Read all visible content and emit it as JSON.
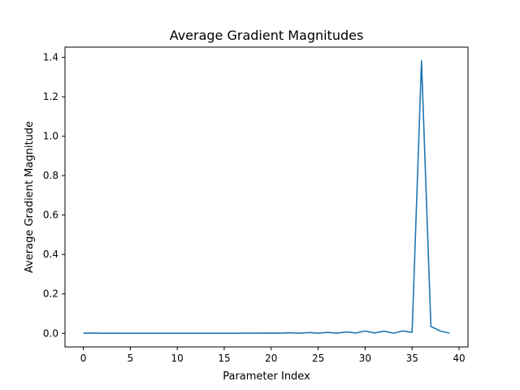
{
  "chart_data": {
    "type": "line",
    "title": "Average Gradient Magnitudes",
    "xlabel": "Parameter Index",
    "ylabel": "Average Gradient Magnitude",
    "xlim": [
      -1.95,
      40.95
    ],
    "ylim": [
      -0.069,
      1.452
    ],
    "grid": false,
    "xticks": [
      0,
      5,
      10,
      15,
      20,
      25,
      30,
      35,
      40
    ],
    "xtick_labels": [
      "0",
      "5",
      "10",
      "15",
      "20",
      "25",
      "30",
      "35",
      "40"
    ],
    "yticks": [
      0.0,
      0.2,
      0.4,
      0.6,
      0.8,
      1.0,
      1.2,
      1.4
    ],
    "ytick_labels": [
      "0.0",
      "0.2",
      "0.4",
      "0.6",
      "0.8",
      "1.0",
      "1.2",
      "1.4"
    ],
    "color": "#1f77b4",
    "x": [
      0,
      1,
      2,
      3,
      4,
      5,
      6,
      7,
      8,
      9,
      10,
      11,
      12,
      13,
      14,
      15,
      16,
      17,
      18,
      19,
      20,
      21,
      22,
      23,
      24,
      25,
      26,
      27,
      28,
      29,
      30,
      31,
      32,
      33,
      34,
      35,
      36,
      37,
      38,
      39
    ],
    "y": [
      0.0005,
      0.002,
      0.0003,
      0.0006,
      0.0004,
      0.0003,
      0.0004,
      0.0003,
      0.0002,
      0.0004,
      0.0003,
      0.0004,
      0.0003,
      0.0002,
      0.0003,
      0.0004,
      0.0003,
      0.0006,
      0.0008,
      0.0007,
      0.0015,
      0.0007,
      0.003,
      0.001,
      0.004,
      0.001,
      0.005,
      0.001,
      0.007,
      0.002,
      0.012,
      0.002,
      0.011,
      0.001,
      0.012,
      0.005,
      1.383,
      0.035,
      0.012,
      0.001
    ]
  }
}
